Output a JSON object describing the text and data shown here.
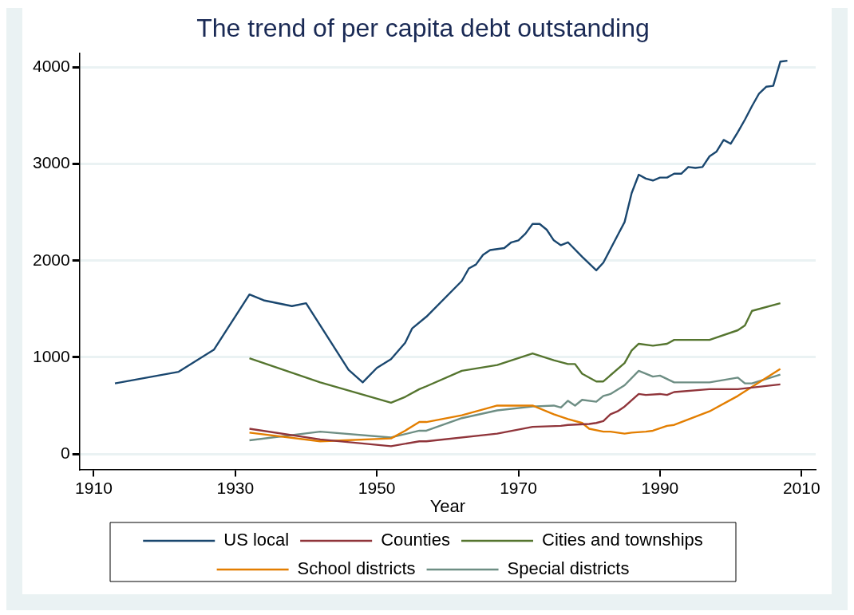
{
  "chart_data": {
    "type": "line",
    "title": "The trend of per capita debt outstanding",
    "xlabel": "Year",
    "xlim": [
      1908,
      2012
    ],
    "xticks": [
      1910,
      1930,
      1950,
      1970,
      1990,
      2010
    ],
    "ylim": [
      -160,
      4150
    ],
    "yticks": [
      0,
      1000,
      2000,
      3000,
      4000
    ],
    "grid": "y",
    "legend": "bottom",
    "marker": "none",
    "line_style": "solid",
    "series": [
      {
        "name": "US local",
        "color": "#1a476f",
        "x": [
          1913,
          1922,
          1927,
          1932,
          1934,
          1938,
          1940,
          1946,
          1948,
          1950,
          1952,
          1954,
          1955,
          1957,
          1962,
          1963,
          1964,
          1965,
          1966,
          1968,
          1969,
          1970,
          1971,
          1972,
          1973,
          1974,
          1975,
          1976,
          1977,
          1979,
          1981,
          1982,
          1983,
          1984,
          1985,
          1986,
          1987,
          1988,
          1989,
          1990,
          1991,
          1992,
          1993,
          1994,
          1995,
          1996,
          1997,
          1998,
          1999,
          2000,
          2001,
          2002,
          2003,
          2004,
          2005,
          2006,
          2007,
          2008
        ],
        "values": [
          730,
          850,
          1080,
          1650,
          1590,
          1530,
          1560,
          870,
          740,
          890,
          980,
          1150,
          1300,
          1420,
          1790,
          1920,
          1960,
          2060,
          2110,
          2130,
          2190,
          2210,
          2280,
          2380,
          2380,
          2320,
          2210,
          2160,
          2190,
          2040,
          1900,
          1980,
          2120,
          2260,
          2400,
          2700,
          2890,
          2850,
          2830,
          2860,
          2860,
          2900,
          2900,
          2970,
          2960,
          2970,
          3080,
          3130,
          3250,
          3210,
          3330,
          3460,
          3600,
          3730,
          3800,
          3810,
          4060,
          4070
        ]
      },
      {
        "name": "Counties",
        "color": "#90353b",
        "x": [
          1932,
          1942,
          1952,
          1956,
          1957,
          1967,
          1972,
          1976,
          1977,
          1980,
          1981,
          1982,
          1983,
          1984,
          1985,
          1987,
          1988,
          1990,
          1991,
          1992,
          1997,
          2001,
          2007
        ],
        "values": [
          260,
          150,
          80,
          130,
          130,
          210,
          280,
          290,
          300,
          310,
          320,
          340,
          410,
          440,
          490,
          620,
          610,
          620,
          610,
          640,
          670,
          670,
          720
        ]
      },
      {
        "name": "Cities and townships",
        "color": "#55752f",
        "x": [
          1932,
          1942,
          1952,
          1954,
          1956,
          1957,
          1962,
          1967,
          1972,
          1975,
          1977,
          1978,
          1979,
          1981,
          1982,
          1985,
          1986,
          1987,
          1989,
          1991,
          1992,
          1997,
          2001,
          2002,
          2003,
          2007
        ],
        "values": [
          990,
          740,
          530,
          590,
          670,
          700,
          860,
          920,
          1040,
          970,
          930,
          930,
          830,
          750,
          750,
          940,
          1070,
          1140,
          1120,
          1140,
          1180,
          1180,
          1280,
          1330,
          1480,
          1560
        ]
      },
      {
        "name": "School districts",
        "color": "#e37e00",
        "x": [
          1932,
          1942,
          1952,
          1954,
          1956,
          1957,
          1962,
          1967,
          1972,
          1975,
          1977,
          1979,
          1980,
          1982,
          1983,
          1985,
          1986,
          1988,
          1989,
          1991,
          1992,
          1997,
          2001,
          2007
        ],
        "values": [
          220,
          130,
          160,
          240,
          330,
          330,
          400,
          500,
          500,
          410,
          360,
          320,
          260,
          230,
          230,
          210,
          220,
          230,
          240,
          290,
          300,
          440,
          600,
          880
        ]
      },
      {
        "name": "Special districts",
        "color": "#6e8e84",
        "x": [
          1932,
          1942,
          1952,
          1956,
          1957,
          1962,
          1967,
          1972,
          1975,
          1976,
          1977,
          1978,
          1979,
          1981,
          1982,
          1983,
          1985,
          1987,
          1989,
          1990,
          1992,
          1997,
          2001,
          2002,
          2003,
          2007
        ],
        "values": [
          140,
          230,
          170,
          240,
          240,
          370,
          450,
          490,
          500,
          480,
          550,
          500,
          560,
          540,
          600,
          620,
          710,
          860,
          800,
          810,
          740,
          740,
          790,
          730,
          730,
          820
        ]
      }
    ]
  }
}
